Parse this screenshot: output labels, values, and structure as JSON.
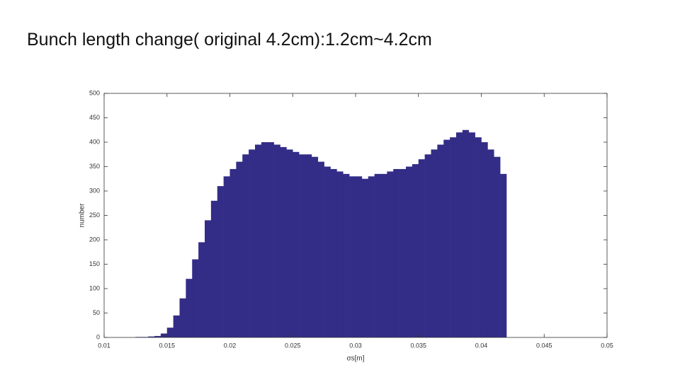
{
  "title": "Bunch length change( original 4.2cm):1.2cm~4.2cm",
  "chart_data": {
    "type": "histogram",
    "color": "#332d87",
    "xlabel": "σs[m]",
    "ylabel": "number",
    "bins": [
      0.012,
      0.0125,
      0.013,
      0.0135,
      0.014,
      0.0145,
      0.015,
      0.0155,
      0.016,
      0.0165,
      0.017,
      0.0175,
      0.018,
      0.0185,
      0.019,
      0.0195,
      0.02,
      0.0205,
      0.021,
      0.0215,
      0.022,
      0.0225,
      0.023,
      0.0235,
      0.024,
      0.0245,
      0.025,
      0.0255,
      0.026,
      0.0265,
      0.027,
      0.0275,
      0.028,
      0.0285,
      0.029,
      0.0295,
      0.03,
      0.0305,
      0.031,
      0.0315,
      0.032,
      0.0325,
      0.033,
      0.0335,
      0.034,
      0.0345,
      0.035,
      0.0355,
      0.036,
      0.0365,
      0.037,
      0.0375,
      0.038,
      0.0385,
      0.039,
      0.0395,
      0.04,
      0.0405,
      0.041,
      0.0415,
      0.042
    ],
    "values": [
      0,
      1,
      1,
      2,
      3,
      8,
      20,
      45,
      80,
      120,
      160,
      195,
      240,
      280,
      310,
      330,
      345,
      360,
      375,
      385,
      395,
      400,
      400,
      395,
      390,
      385,
      380,
      375,
      375,
      370,
      360,
      350,
      345,
      340,
      335,
      330,
      330,
      325,
      330,
      335,
      335,
      340,
      345,
      345,
      350,
      355,
      365,
      375,
      385,
      395,
      405,
      410,
      420,
      425,
      420,
      410,
      400,
      385,
      370,
      335
    ],
    "xlim": [
      0.01,
      0.05
    ],
    "xticks": [
      0.01,
      0.015,
      0.02,
      0.025,
      0.03,
      0.035,
      0.04,
      0.045,
      0.05
    ],
    "ylim": [
      0,
      500
    ],
    "yticks": [
      0,
      50,
      100,
      150,
      200,
      250,
      300,
      350,
      400,
      450,
      500
    ]
  }
}
